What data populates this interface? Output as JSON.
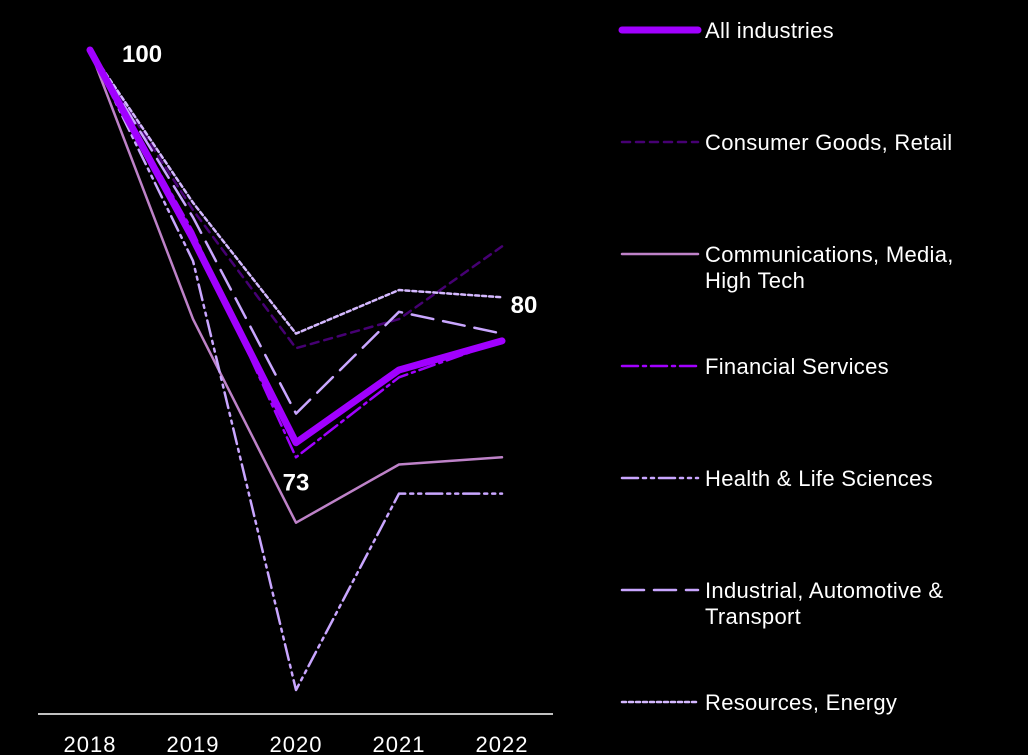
{
  "chart_data": {
    "type": "line",
    "categories": [
      "2018",
      "2019",
      "2020",
      "2021",
      "2022"
    ],
    "ylim": [
      55,
      101
    ],
    "series": [
      {
        "name": "All industries",
        "values": [
          100,
          87,
          73,
          78,
          80
        ],
        "color": "#a100ff",
        "dash": "solid-thick"
      },
      {
        "name": "Consumer Goods, Retail",
        "values": [
          100,
          89,
          79.5,
          81.5,
          86.5
        ],
        "color": "#460073",
        "dash": "short-dash"
      },
      {
        "name": "Communications, Media, High Tech",
        "values": [
          100,
          81.5,
          67.5,
          71.5,
          72
        ],
        "color": "#be82c8",
        "dash": "solid"
      },
      {
        "name": "Financial Services",
        "values": [
          100,
          87.5,
          72,
          77.5,
          80
        ],
        "color": "#a100ff",
        "dash": "dash-dot"
      },
      {
        "name": "Health & Life Sciences",
        "values": [
          100,
          85.5,
          56,
          69.5,
          69.5
        ],
        "color": "#c9a6ff",
        "dash": "dash-dot-dot"
      },
      {
        "name": "Industrial, Automotive & Transport",
        "values": [
          100,
          88.5,
          75,
          82,
          80.5
        ],
        "color": "#c9a6ff",
        "dash": "long-dash"
      },
      {
        "name": "Resources, Energy",
        "values": [
          100,
          89.5,
          80.5,
          83.5,
          83
        ],
        "color": "#d4b8ff",
        "dash": "dotted"
      }
    ],
    "data_labels": [
      {
        "text": "100",
        "category": "2018",
        "value": 100
      },
      {
        "text": "73",
        "category": "2020",
        "value": 73
      },
      {
        "text": "80",
        "category": "2022",
        "value": 80
      }
    ],
    "legend_position": "right",
    "grid": false
  }
}
